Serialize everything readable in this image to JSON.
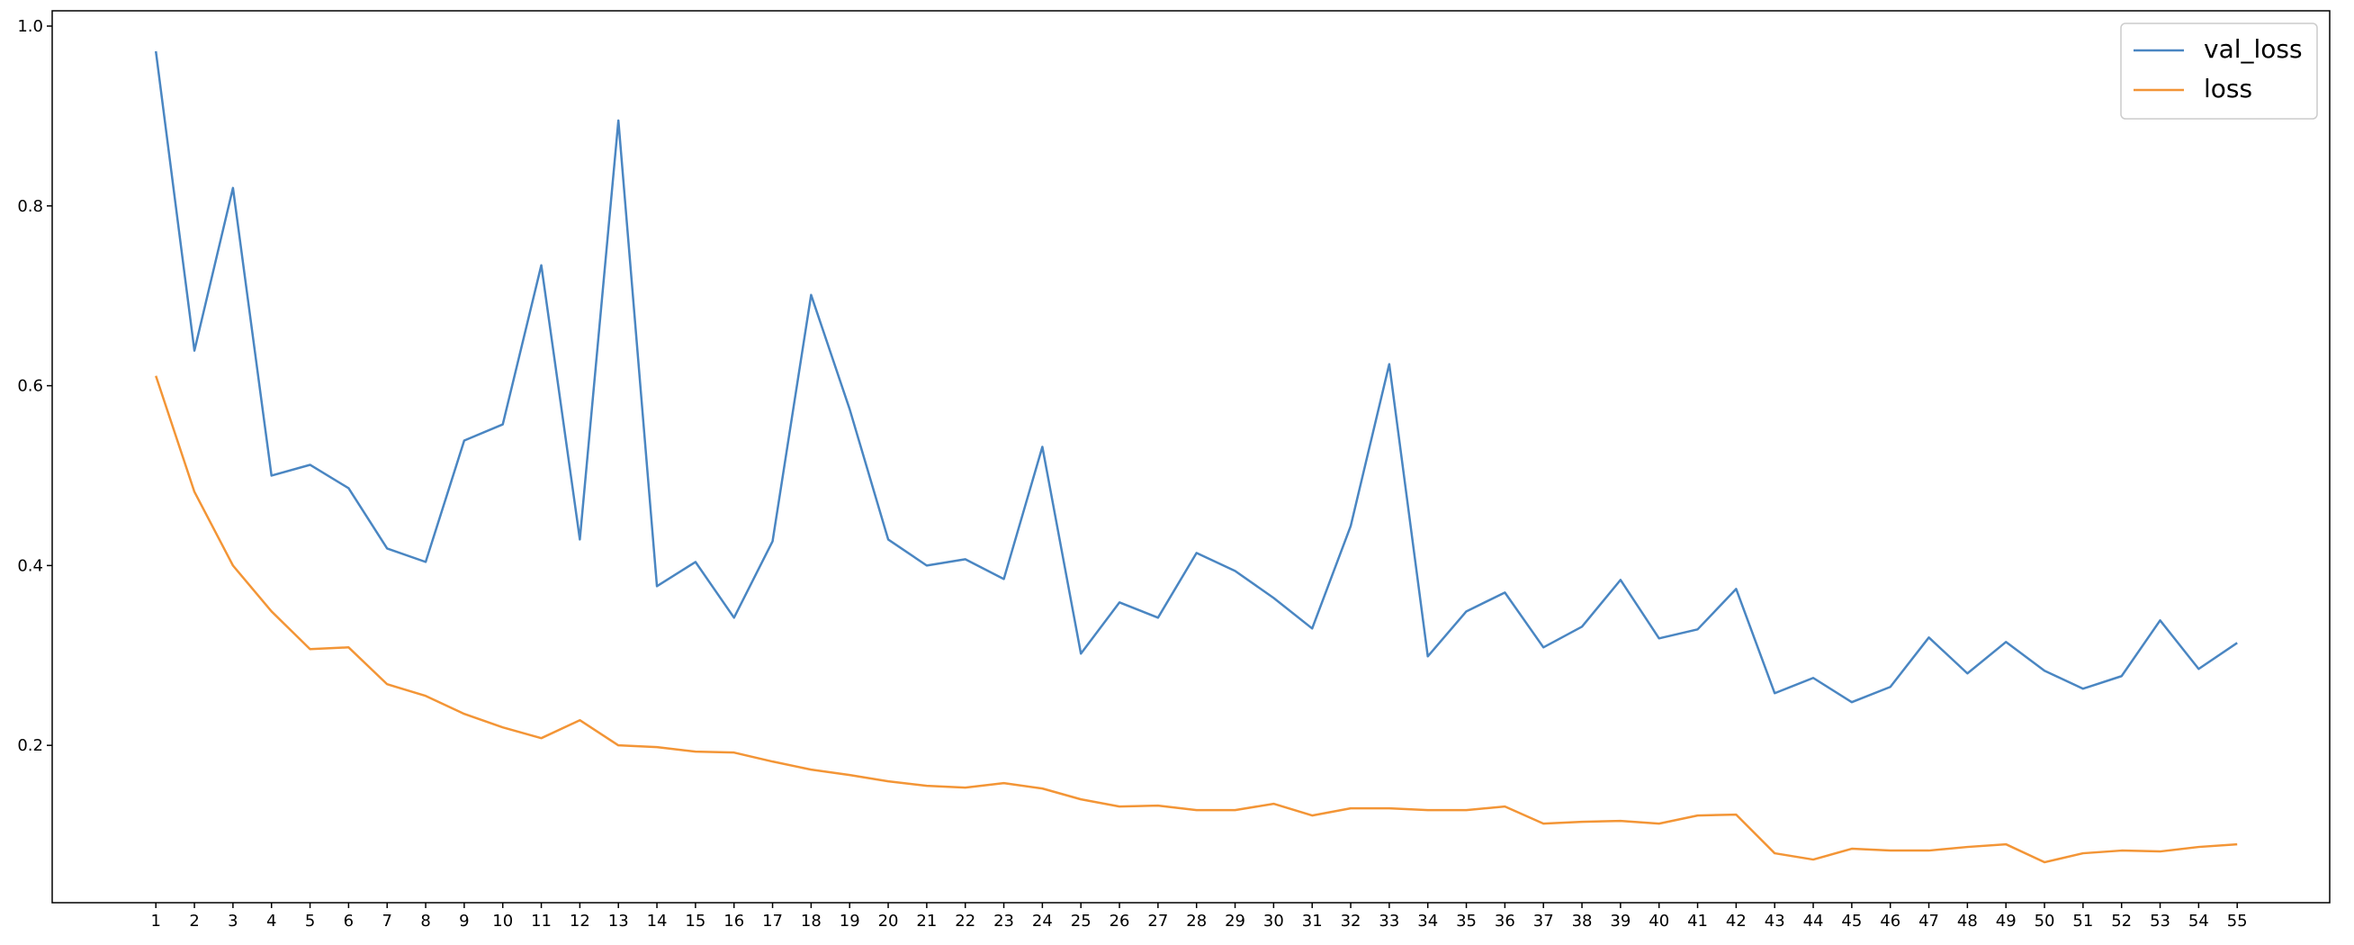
{
  "chart_data": {
    "type": "line",
    "x": [
      1,
      2,
      3,
      4,
      5,
      6,
      7,
      8,
      9,
      10,
      11,
      12,
      13,
      14,
      15,
      16,
      17,
      18,
      19,
      20,
      21,
      22,
      23,
      24,
      25,
      26,
      27,
      28,
      29,
      30,
      31,
      32,
      33,
      34,
      35,
      36,
      37,
      38,
      39,
      40,
      41,
      42,
      43,
      44,
      45,
      46,
      47,
      48,
      49,
      50,
      51,
      52,
      53,
      54,
      55
    ],
    "series": [
      {
        "name": "val_loss",
        "color": "#4a86c2",
        "values": [
          0.972,
          0.639,
          0.82,
          0.5,
          0.512,
          0.486,
          0.419,
          0.404,
          0.539,
          0.557,
          0.734,
          0.429,
          0.895,
          0.377,
          0.404,
          0.342,
          0.427,
          0.701,
          0.574,
          0.429,
          0.4,
          0.407,
          0.385,
          0.532,
          0.302,
          0.359,
          0.342,
          0.414,
          0.394,
          0.364,
          0.33,
          0.444,
          0.624,
          0.299,
          0.349,
          0.37,
          0.309,
          0.332,
          0.384,
          0.319,
          0.329,
          0.374,
          0.258,
          0.275,
          0.248,
          0.265,
          0.32,
          0.28,
          0.315,
          0.283,
          0.263,
          0.277,
          0.339,
          0.285,
          0.314
        ]
      },
      {
        "name": "loss",
        "color": "#f39536",
        "values": [
          0.611,
          0.482,
          0.4,
          0.349,
          0.307,
          0.309,
          0.268,
          0.255,
          0.235,
          0.22,
          0.208,
          0.228,
          0.2,
          0.198,
          0.193,
          0.192,
          0.182,
          0.173,
          0.167,
          0.16,
          0.155,
          0.153,
          0.158,
          0.152,
          0.14,
          0.132,
          0.133,
          0.128,
          0.128,
          0.135,
          0.122,
          0.13,
          0.13,
          0.128,
          0.128,
          0.132,
          0.113,
          0.115,
          0.116,
          0.113,
          0.122,
          0.123,
          0.08,
          0.073,
          0.085,
          0.083,
          0.083,
          0.087,
          0.09,
          0.07,
          0.08,
          0.083,
          0.082,
          0.087,
          0.09
        ]
      }
    ],
    "xlim": [
      -1.69,
      57.4
    ],
    "xticks": [
      1,
      2,
      3,
      4,
      5,
      6,
      7,
      8,
      9,
      10,
      11,
      12,
      13,
      14,
      15,
      16,
      17,
      18,
      19,
      20,
      21,
      22,
      23,
      24,
      25,
      26,
      27,
      28,
      29,
      30,
      31,
      32,
      33,
      34,
      35,
      36,
      37,
      38,
      39,
      40,
      41,
      42,
      43,
      44,
      45,
      46,
      47,
      48,
      49,
      50,
      51,
      52,
      53,
      54,
      55
    ],
    "ylim": [
      0.025,
      1.017
    ],
    "yticks": [
      0.2,
      0.4,
      0.6,
      0.8,
      {
        "value": 1,
        "label": "1.0"
      }
    ],
    "grid": false,
    "legend": "upper right"
  }
}
